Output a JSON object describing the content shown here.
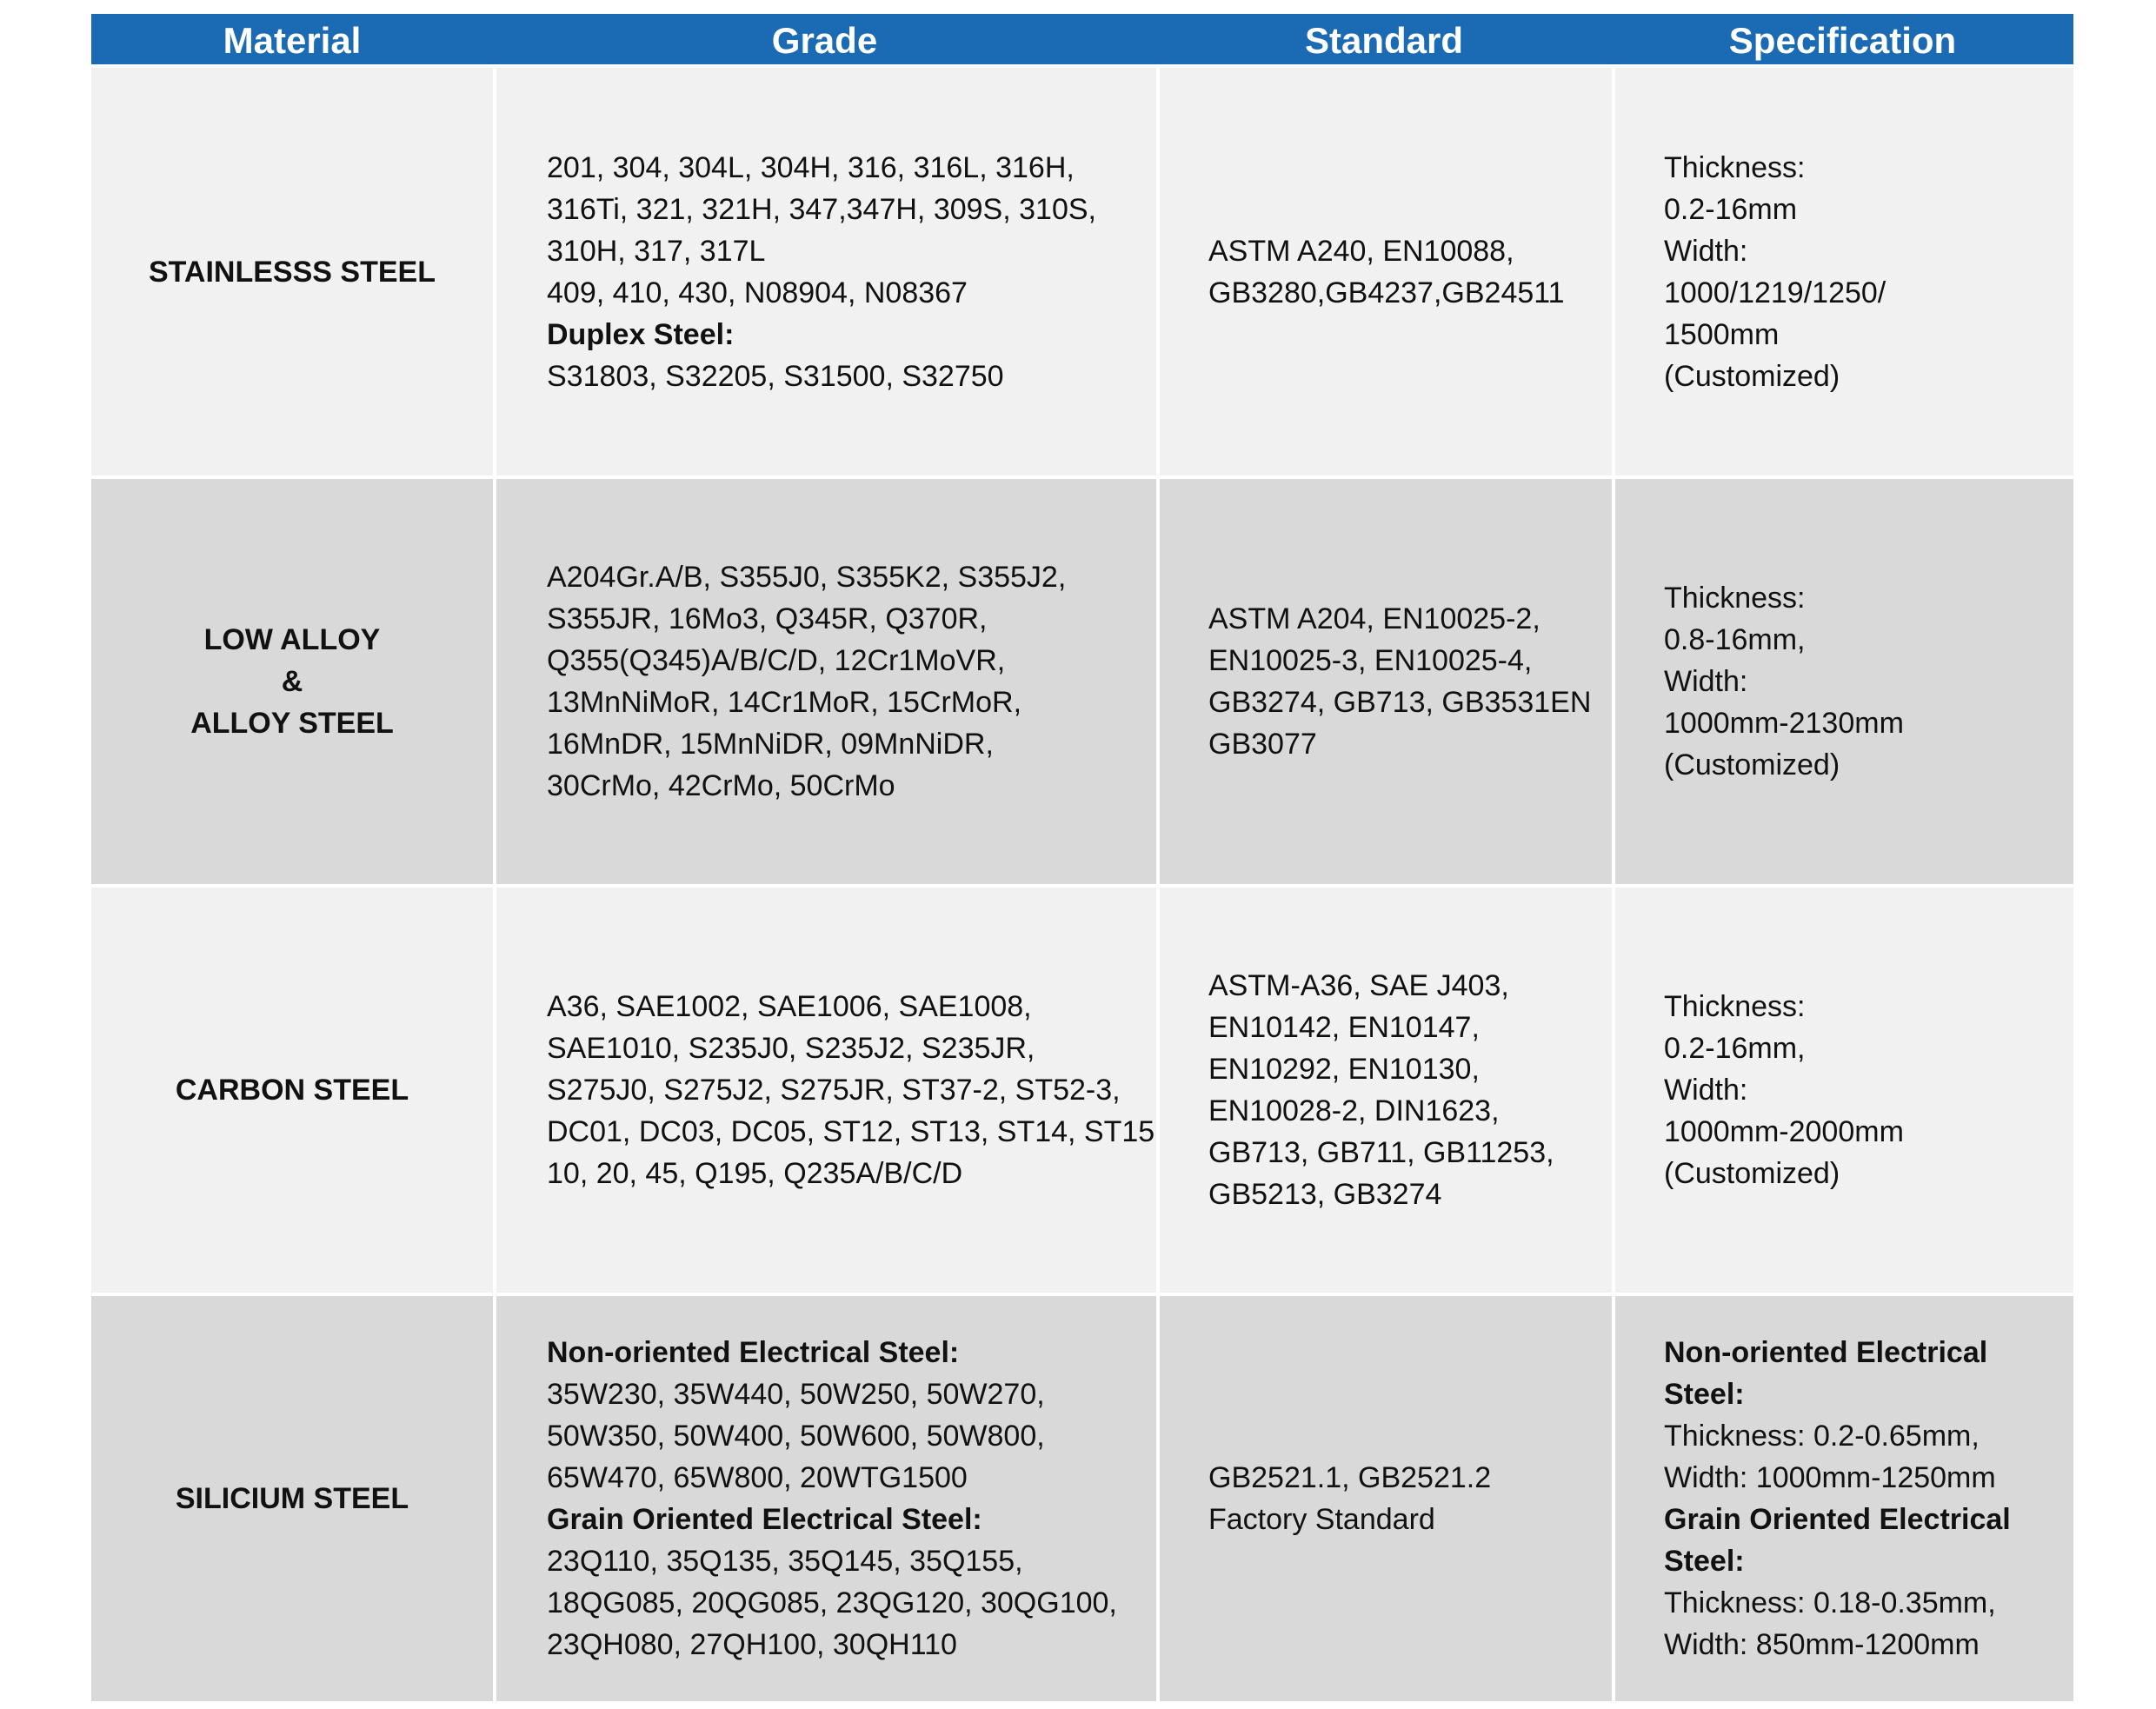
{
  "headers": [
    "Material",
    "Grade",
    "Standard",
    "Specification"
  ],
  "rows": [
    {
      "material": [
        "STAINLESSS STEEL"
      ],
      "grade": [
        {
          "text": "201, 304, 304L, 304H, 316, 316L, 316H,",
          "bold": false
        },
        {
          "text": "316Ti, 321, 321H, 347,347H, 309S, 310S,",
          "bold": false
        },
        {
          "text": "310H, 317, 317L",
          "bold": false
        },
        {
          "text": "409, 410, 430, N08904, N08367",
          "bold": false
        },
        {
          "text": "Duplex Steel:",
          "bold": true
        },
        {
          "text": "S31803, S32205, S31500, S32750",
          "bold": false
        }
      ],
      "standard": [
        {
          "text": "ASTM A240, EN10088,",
          "bold": false
        },
        {
          "text": "GB3280,GB4237,GB24511",
          "bold": false
        }
      ],
      "specification": [
        {
          "text": "Thickness:",
          "bold": false
        },
        {
          "text": "0.2-16mm",
          "bold": false
        },
        {
          "text": "Width:",
          "bold": false
        },
        {
          "text": "1000/1219/1250/",
          "bold": false
        },
        {
          "text": "1500mm",
          "bold": false
        },
        {
          "text": "(Customized)",
          "bold": false
        }
      ]
    },
    {
      "material": [
        "LOW ALLOY",
        "&",
        "ALLOY STEEL"
      ],
      "grade": [
        {
          "text": "A204Gr.A/B, S355J0, S355K2, S355J2,",
          "bold": false
        },
        {
          "text": "S355JR, 16Mo3,  Q345R, Q370R,",
          "bold": false
        },
        {
          "text": "Q355(Q345)A/B/C/D, 12Cr1MoVR,",
          "bold": false
        },
        {
          "text": "13MnNiMoR, 14Cr1MoR, 15CrMoR,",
          "bold": false
        },
        {
          "text": "16MnDR, 15MnNiDR, 09MnNiDR,",
          "bold": false
        },
        {
          "text": "30CrMo, 42CrMo, 50CrMo",
          "bold": false
        }
      ],
      "standard": [
        {
          "text": "ASTM A204,  EN10025-2,",
          "bold": false
        },
        {
          "text": "EN10025-3, EN10025-4,",
          "bold": false
        },
        {
          "text": "GB3274, GB713, GB3531EN",
          "bold": false
        },
        {
          "text": "GB3077",
          "bold": false
        }
      ],
      "specification": [
        {
          "text": "Thickness:",
          "bold": false
        },
        {
          "text": "0.8-16mm,",
          "bold": false
        },
        {
          "text": "Width:",
          "bold": false
        },
        {
          "text": "1000mm-2130mm",
          "bold": false
        },
        {
          "text": "(Customized)",
          "bold": false
        }
      ]
    },
    {
      "material": [
        "CARBON STEEL"
      ],
      "grade": [
        {
          "text": "A36,  SAE1002,  SAE1006,  SAE1008,",
          "bold": false
        },
        {
          "text": "SAE1010, S235J0,  S235J2,  S235JR,",
          "bold": false
        },
        {
          "text": "S275J0,  S275J2,  S275JR, ST37-2, ST52-3,",
          "bold": false
        },
        {
          "text": "DC01, DC03, DC05, ST12, ST13, ST14, ST15,",
          "bold": false
        },
        {
          "text": "10, 20, 45, Q195, Q235A/B/C/D",
          "bold": false
        }
      ],
      "standard": [
        {
          "text": "ASTM-A36, SAE J403,",
          "bold": false
        },
        {
          "text": "EN10142, EN10147,",
          "bold": false
        },
        {
          "text": "EN10292, EN10130,",
          "bold": false
        },
        {
          "text": "EN10028-2, DIN1623,",
          "bold": false
        },
        {
          "text": "GB713, GB711, GB11253,",
          "bold": false
        },
        {
          "text": "GB5213, GB3274",
          "bold": false
        }
      ],
      "specification": [
        {
          "text": "Thickness:",
          "bold": false
        },
        {
          "text": "0.2-16mm,",
          "bold": false
        },
        {
          "text": "Width:",
          "bold": false
        },
        {
          "text": "1000mm-2000mm",
          "bold": false
        },
        {
          "text": "(Customized)",
          "bold": false
        }
      ]
    },
    {
      "material": [
        "SILICIUM STEEL"
      ],
      "grade": [
        {
          "text": "Non-oriented Electrical Steel:",
          "bold": true
        },
        {
          "text": "35W230, 35W440, 50W250, 50W270,",
          "bold": false
        },
        {
          "text": "50W350, 50W400, 50W600, 50W800,",
          "bold": false
        },
        {
          "text": "65W470, 65W800, 20WTG1500",
          "bold": false
        },
        {
          "text": "Grain Oriented Electrical Steel:",
          "bold": true
        },
        {
          "text": "23Q110, 35Q135, 35Q145, 35Q155,",
          "bold": false
        },
        {
          "text": "18QG085, 20QG085, 23QG120, 30QG100,",
          "bold": false
        },
        {
          "text": "23QH080, 27QH100, 30QH110",
          "bold": false
        }
      ],
      "standard": [
        {
          "text": "GB2521.1, GB2521.2",
          "bold": false
        },
        {
          "text": "Factory Standard",
          "bold": false
        }
      ],
      "specification": [
        {
          "text": "Non-oriented Electrical",
          "bold": true
        },
        {
          "text": "Steel:",
          "bold": true
        },
        {
          "text": "Thickness: 0.2-0.65mm,",
          "bold": false
        },
        {
          "text": "Width: 1000mm-1250mm",
          "bold": false
        },
        {
          "text": "Grain Oriented Electrical",
          "bold": true
        },
        {
          "text": "Steel:",
          "bold": true
        },
        {
          "text": "Thickness: 0.18-0.35mm,",
          "bold": false
        },
        {
          "text": "Width: 850mm-1200mm",
          "bold": false
        }
      ]
    }
  ],
  "colors": {
    "header_bg": "#1a6ab4",
    "header_text": "#ffffff",
    "row_light": "#f1f1f1",
    "row_dark": "#d9d9d9"
  }
}
